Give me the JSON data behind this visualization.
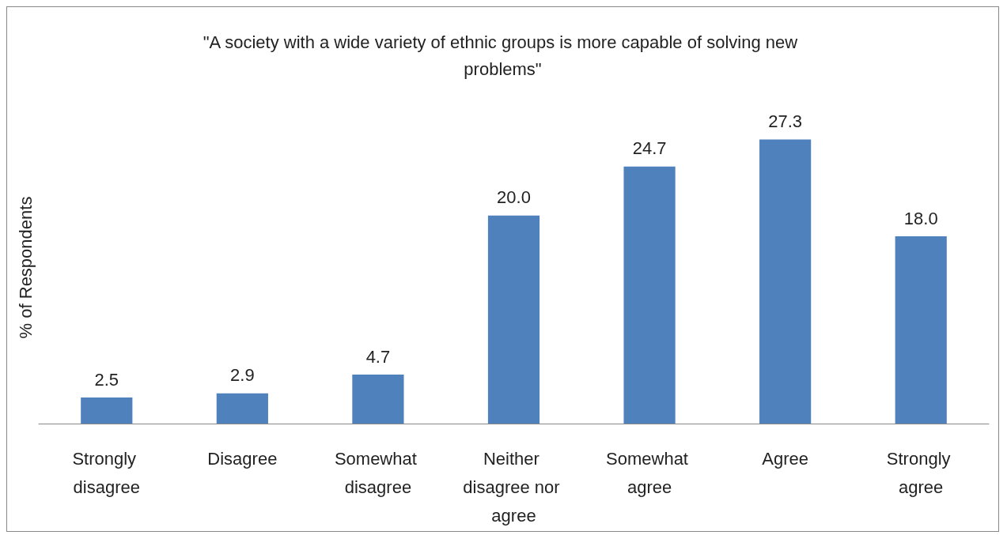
{
  "chart_data": {
    "type": "bar",
    "title": "\"A society with a wide variety of ethnic groups is more capable of solving new problems\"",
    "ylabel": "% of Respondents",
    "categories": [
      "Strongly disagree",
      "Disagree",
      "Somewhat disagree",
      "Neither disagree nor agree",
      "Somewhat agree",
      "Agree",
      "Strongly agree"
    ],
    "values": [
      2.5,
      2.9,
      4.7,
      20.0,
      24.7,
      27.3,
      18.0
    ],
    "value_labels": [
      "2.5",
      "2.9",
      "4.7",
      "20.0",
      "24.7",
      "27.3",
      "18.0"
    ],
    "color": "#4f81bd"
  }
}
